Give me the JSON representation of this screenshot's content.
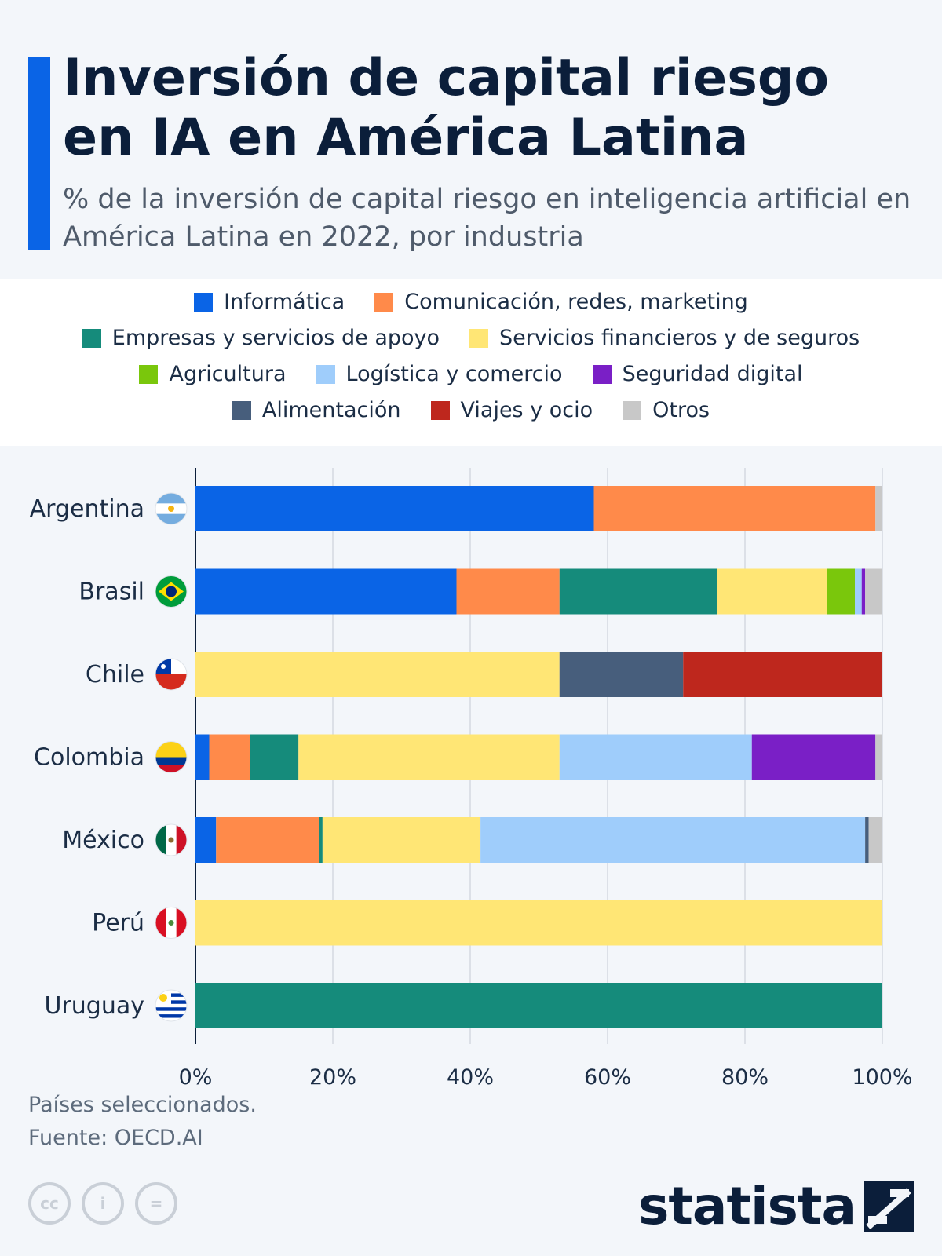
{
  "header": {
    "title": "Inversión de capital riesgo en IA en América Latina",
    "subtitle": "% de la inversión de capital riesgo en inteligencia artificial en América Latina en 2022, por industria"
  },
  "colors": {
    "accent": "#0a64e6",
    "Informática": "#0a64e6",
    "Comunicación, redes, marketing": "#ff8a4a",
    "Empresas y servicios de apoyo": "#158b7b",
    "Servicios financieros y de seguros": "#ffe675",
    "Agricultura": "#7ac70c",
    "Logística y comercio": "#9fcdfb",
    "Seguridad digital": "#7a1fc6",
    "Alimentación": "#475e7c",
    "Viajes y ocio": "#be271d",
    "Otros": "#c8c8c8"
  },
  "chart_data": {
    "type": "bar",
    "orientation": "horizontal",
    "stacked": true,
    "categories": [
      "Argentina",
      "Brasil",
      "Chile",
      "Colombia",
      "México",
      "Perú",
      "Uruguay"
    ],
    "flag_icons": [
      "argentina-flag-icon",
      "brazil-flag-icon",
      "chile-flag-icon",
      "colombia-flag-icon",
      "mexico-flag-icon",
      "peru-flag-icon",
      "uruguay-flag-icon"
    ],
    "series": [
      {
        "name": "Informática",
        "values": [
          58,
          38,
          0,
          2,
          3,
          0,
          0
        ]
      },
      {
        "name": "Comunicación, redes, marketing",
        "values": [
          41,
          15,
          0,
          6,
          15,
          0,
          0
        ]
      },
      {
        "name": "Empresas y servicios de apoyo",
        "values": [
          0,
          23,
          0,
          7,
          0.5,
          0,
          100
        ]
      },
      {
        "name": "Servicios financieros y de seguros",
        "values": [
          0,
          16,
          53,
          38,
          23,
          100,
          0
        ]
      },
      {
        "name": "Agricultura",
        "values": [
          0,
          4,
          0,
          0,
          0,
          0,
          0
        ]
      },
      {
        "name": "Logística y comercio",
        "values": [
          0,
          1,
          0,
          28,
          56,
          0,
          0
        ]
      },
      {
        "name": "Seguridad digital",
        "values": [
          0,
          0.5,
          0,
          18,
          0,
          0,
          0
        ]
      },
      {
        "name": "Alimentación",
        "values": [
          0,
          0,
          18,
          0,
          0.5,
          0,
          0
        ]
      },
      {
        "name": "Viajes y ocio",
        "values": [
          0,
          0,
          29,
          0,
          0,
          0,
          0
        ]
      },
      {
        "name": "Otros",
        "values": [
          1,
          2.5,
          0,
          1,
          2,
          0,
          0
        ]
      }
    ],
    "x_ticks": [
      "0%",
      "20%",
      "40%",
      "60%",
      "80%",
      "100%"
    ],
    "xlim": [
      0,
      100
    ],
    "grid": true,
    "legend_position": "top"
  },
  "legend_rows": [
    [
      "Informática",
      "Comunicación, redes, marketing"
    ],
    [
      "Empresas y servicios de apoyo",
      "Servicios financieros y de seguros"
    ],
    [
      "Agricultura",
      "Logística y comercio",
      "Seguridad digital"
    ],
    [
      "Alimentación",
      "Viajes y ocio",
      "Otros"
    ]
  ],
  "footer": {
    "note": "Países seleccionados.",
    "source": "Fuente: OECD.AI",
    "license_icons": [
      "cc-icon",
      "attribution-icon",
      "no-derivatives-icon"
    ],
    "license_labels": [
      "cc",
      "i",
      "="
    ],
    "logo": "statista"
  }
}
